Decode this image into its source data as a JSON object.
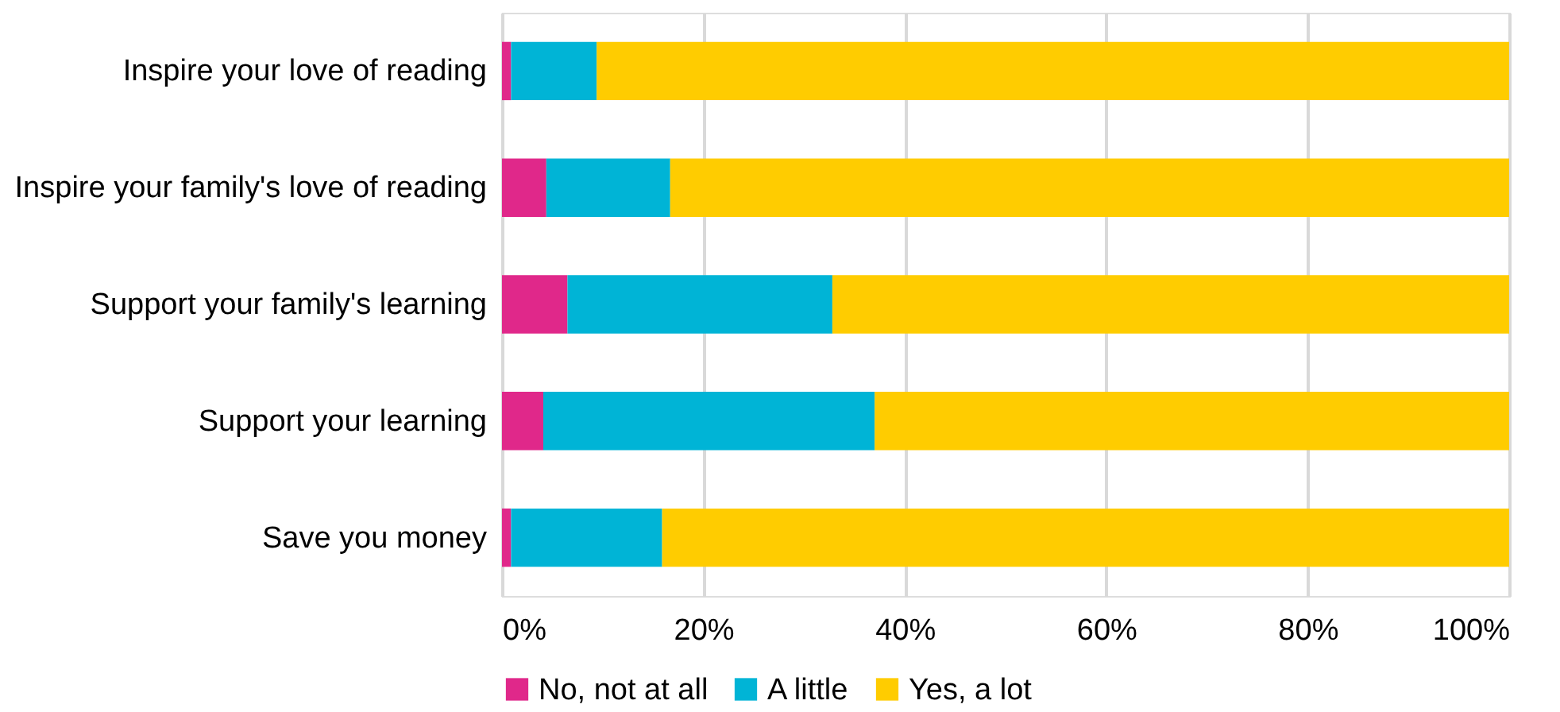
{
  "chart_data": {
    "type": "bar",
    "orientation": "horizontal",
    "stacked": true,
    "categories": [
      "Inspire your love of reading",
      "Inspire your family's love of reading",
      "Support your family's learning",
      "Support your learning",
      "Save you money"
    ],
    "series": [
      {
        "name": "No, not at all",
        "color": "#e0288a",
        "values": [
          0.9,
          4.4,
          6.5,
          4.1,
          0.9
        ]
      },
      {
        "name": "A little",
        "color": "#00b4d6",
        "values": [
          8.5,
          12.3,
          26.3,
          32.9,
          15.0
        ]
      },
      {
        "name": "Yes, a lot",
        "color": "#ffcc00",
        "values": [
          90.6,
          83.3,
          67.2,
          63.0,
          84.1
        ]
      }
    ],
    "xlim": [
      0,
      100
    ],
    "xticks": [
      {
        "value": 0,
        "label": "0%"
      },
      {
        "value": 20,
        "label": "20%"
      },
      {
        "value": 40,
        "label": "40%"
      },
      {
        "value": 60,
        "label": "60%"
      },
      {
        "value": 80,
        "label": "80%"
      },
      {
        "value": 100,
        "label": "100%"
      }
    ],
    "grid": "x",
    "legend": "bottom"
  }
}
